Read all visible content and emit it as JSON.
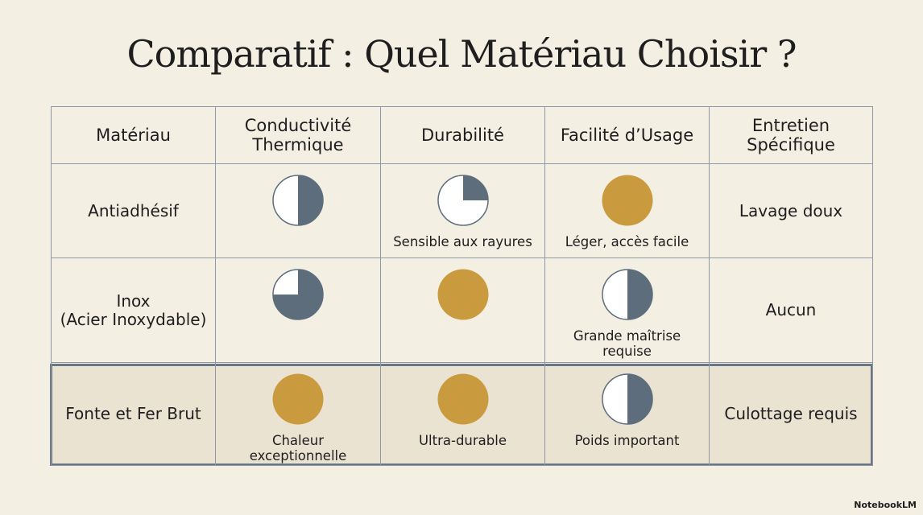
{
  "title": "Comparatif : Quel Matériau Choisir ?",
  "table": {
    "header": [
      "Matériau",
      "Conductivité\nThermique",
      "Durabilité",
      "Facilité d’Usage",
      "Entretien\nSpécifique"
    ],
    "rows": [
      [
        "Antiadhésif",
        {
          "level": 50
        },
        {
          "level": 25,
          "caption": "Sensible aux rayures"
        },
        {
          "level": 100,
          "caption": "Léger, accès facile"
        },
        "Lavage doux"
      ],
      [
        "Inox\n(Acier Inoxydable)",
        {
          "level": 75
        },
        {
          "level": 100
        },
        {
          "level": 50,
          "caption": "Grande maîtrise\nrequise"
        },
        "Aucun"
      ],
      [
        "Fonte et Fer Brut",
        {
          "level": 100,
          "caption": "Chaleur\nexceptionnelle"
        },
        {
          "level": 100,
          "caption": "Ultra-durable"
        },
        {
          "level": 50,
          "caption": "Poids important"
        },
        "Culottage requis"
      ]
    ],
    "highlighted_row": 2
  },
  "colors": {
    "full": "#c99a3e",
    "partial": "#5d6d7c"
  },
  "brand": "NotebookLM"
}
